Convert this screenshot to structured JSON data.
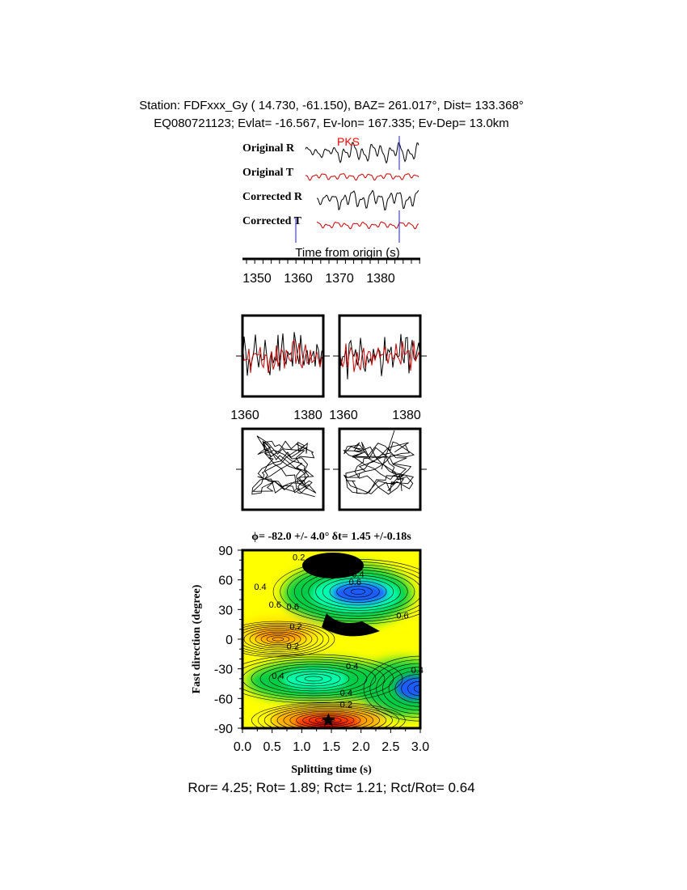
{
  "header": {
    "line1": "Station: FDFxxx_Gy (  14.730,  -61.150), BAZ=  261.017°, Dist=  133.368°",
    "line2": "EQ080721123; Evlat= -16.567, Ev-lon= 167.335; Ev-Dep= 13.0km"
  },
  "traces": {
    "labels": [
      "Original R",
      "Original T",
      "Corrected R",
      "Corrected T"
    ],
    "phase_label": "PKS",
    "axis_label": "Time from origin (s)",
    "ticks": [
      "1350",
      "1360",
      "1370",
      "1380"
    ],
    "colors": {
      "radial": "#000000",
      "transverse": "#cc0000",
      "window": "#1a1aff",
      "phase": "#ff0000"
    }
  },
  "window_panels": {
    "left_ticks": [
      "1360",
      "1380"
    ],
    "right_ticks": [
      "1360",
      "1380"
    ]
  },
  "grid_title": "ϕ= -82.0 +/- 4.0° δt= 1.45 +/-0.18s",
  "summary": "Ror= 4.25; Rot= 1.89; Rct= 1.21; Rct/Rot= 0.64",
  "chart_data": {
    "type": "heatmap",
    "title": "ϕ= -82.0 +/- 4.0° δt= 1.45 +/-0.18s",
    "xlabel": "Splitting time (s)",
    "ylabel": "Fast direction (degree)",
    "xlim": [
      0,
      3
    ],
    "ylim": [
      -90,
      90
    ],
    "x_ticks": [
      "0.0",
      "0.5",
      "1.0",
      "1.5",
      "2.0",
      "2.5",
      "3.0"
    ],
    "y_ticks": [
      "90",
      "60",
      "30",
      "0",
      "-30",
      "-60",
      "-90"
    ],
    "contour_labels": [
      {
        "text": "0.2",
        "x": 0.95,
        "y": 83
      },
      {
        "text": "0.4",
        "x": 1.85,
        "y": 78
      },
      {
        "text": "0.4",
        "x": 1.95,
        "y": 66
      },
      {
        "text": "0.6",
        "x": 1.9,
        "y": 58
      },
      {
        "text": "0.4",
        "x": 0.3,
        "y": 53
      },
      {
        "text": "0.6",
        "x": 0.55,
        "y": 35
      },
      {
        "text": "0.6",
        "x": 0.85,
        "y": 33
      },
      {
        "text": "0.6",
        "x": 2.7,
        "y": 24
      },
      {
        "text": "0.2",
        "x": 0.9,
        "y": 13
      },
      {
        "text": "0.4",
        "x": 1.65,
        "y": 12
      },
      {
        "text": "0.2",
        "x": 0.85,
        "y": -7
      },
      {
        "text": "0.4",
        "x": 1.85,
        "y": -27
      },
      {
        "text": "0.4",
        "x": 0.6,
        "y": -37
      },
      {
        "text": "0.4",
        "x": 2.95,
        "y": -31
      },
      {
        "text": "0.4",
        "x": 1.75,
        "y": -54
      },
      {
        "text": "0.2",
        "x": 1.75,
        "y": -66
      }
    ],
    "best_fit": {
      "phi": -82.0,
      "dt": 1.45
    },
    "colors": [
      "#ffff00",
      "#ffd000",
      "#ff9a00",
      "#ff3300",
      "#00cc44",
      "#00ffaa",
      "#1a5cff",
      "#000000"
    ]
  }
}
